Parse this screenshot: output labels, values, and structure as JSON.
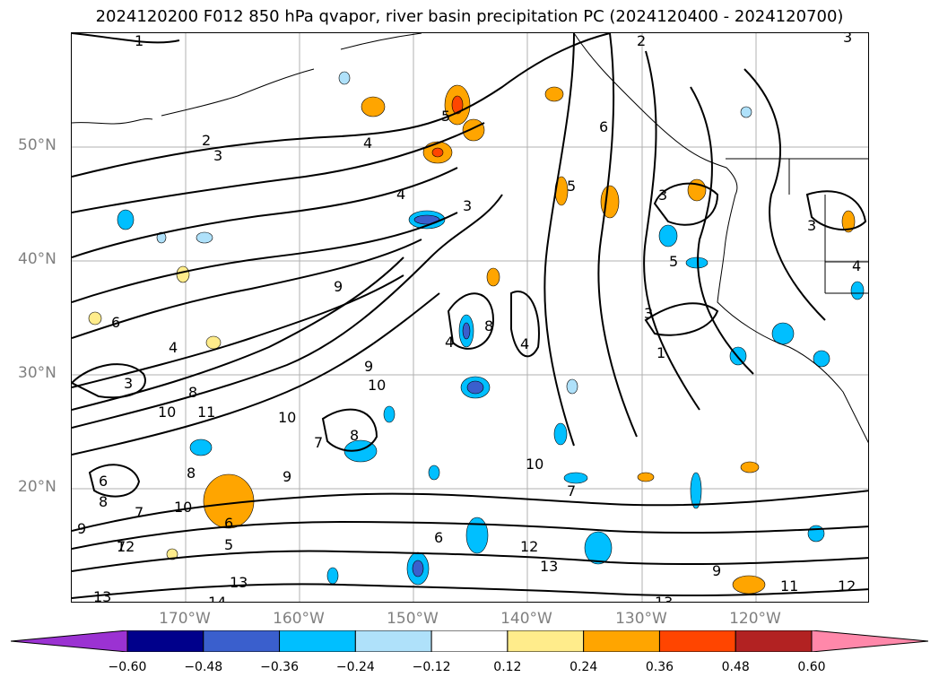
{
  "title": "2024120200 F012 850 hPa qvapor, river basin precipitation PC (2024120400 - 2024120700)",
  "lat_labels": [
    "50°N",
    "40°N",
    "30°N",
    "20°N"
  ],
  "lon_labels": [
    "170°W",
    "160°W",
    "150°W",
    "140°W",
    "130°W",
    "120°W"
  ],
  "colorbar": {
    "colors": [
      "#9b32d2",
      "#00008b",
      "#3a5fcd",
      "#00bfff",
      "#afe1fa",
      "#ffffff",
      "#ffec8b",
      "#ffa500",
      "#ff4500",
      "#b22222",
      "#ff88aa"
    ],
    "tick_labels": [
      "−0.60",
      "−0.48",
      "−0.36",
      "−0.24",
      "−0.12",
      "0.12",
      "0.24",
      "0.36",
      "0.48",
      "0.60"
    ]
  },
  "contour_labels": [
    "1",
    "2",
    "3",
    "2",
    "3",
    "4",
    "4",
    "5",
    "3",
    "6",
    "3",
    "4",
    "6",
    "4",
    "3",
    "9",
    "9",
    "8",
    "10",
    "11",
    "10",
    "8",
    "10",
    "9",
    "6",
    "7",
    "8",
    "9",
    "10",
    "6",
    "5",
    "7",
    "13",
    "14",
    "13",
    "12",
    "13",
    "11",
    "12",
    "9",
    "7",
    "3",
    "1",
    "5",
    "4",
    "5",
    "3",
    "4",
    "8",
    "10",
    "6",
    "8",
    "7",
    "12",
    "13"
  ]
}
